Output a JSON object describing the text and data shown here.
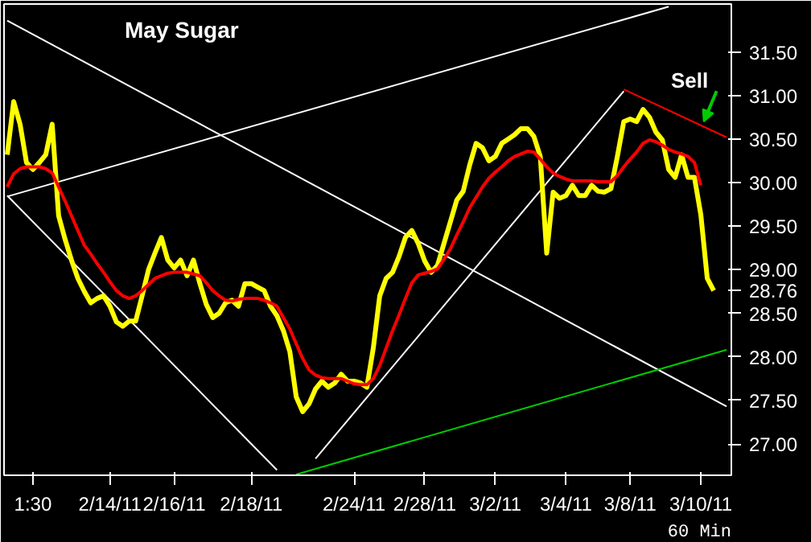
{
  "chart_data": {
    "type": "line",
    "title": "May Sugar",
    "categories": [
      null,
      null,
      null,
      null,
      "1:30",
      null,
      null,
      null,
      null,
      null,
      null,
      null,
      null,
      null,
      null,
      null,
      "2/14/11",
      null,
      null,
      null,
      null,
      null,
      null,
      null,
      null,
      null,
      "2/16/11",
      null,
      null,
      null,
      null,
      null,
      null,
      null,
      null,
      null,
      null,
      null,
      "2/18/11",
      null,
      null,
      null,
      null,
      null,
      null,
      null,
      null,
      null,
      null,
      null,
      null,
      null,
      null,
      null,
      "2/24/11",
      null,
      null,
      null,
      null,
      null,
      null,
      null,
      null,
      null,
      null,
      "2/28/11",
      null,
      null,
      null,
      null,
      null,
      null,
      null,
      null,
      null,
      null,
      "3/2/11",
      null,
      null,
      null,
      null,
      null,
      null,
      null,
      null,
      null,
      null,
      "3/4/11",
      null,
      null,
      null,
      null,
      null,
      null,
      null,
      null,
      null,
      "3/8/11",
      null,
      null,
      null,
      null,
      null,
      null,
      null,
      null,
      null,
      null,
      "3/10/11",
      null,
      null,
      null,
      null
    ],
    "ylim": [
      26.64,
      32.05
    ],
    "yticks": [
      {
        "value": 27,
        "label": "27.00"
      },
      {
        "value": 27.5,
        "label": "27.50"
      },
      {
        "value": 28,
        "label": "28.00"
      },
      {
        "value": 28.5,
        "label": "28.50"
      },
      {
        "value": 28.76,
        "label": "28.76"
      },
      {
        "value": 29,
        "label": "29.00"
      },
      {
        "value": 29.5,
        "label": "29.50"
      },
      {
        "value": 30,
        "label": "30.00"
      },
      {
        "value": 30.5,
        "label": "30.50"
      },
      {
        "value": 31,
        "label": "31.00"
      },
      {
        "value": 31.5,
        "label": "31.50"
      }
    ],
    "series": [
      {
        "color": "#ffffff",
        "values": [
          31.86,
          null,
          null,
          null,
          null,
          null,
          null,
          null,
          null,
          null,
          null,
          null,
          null,
          null,
          null,
          null,
          null,
          null,
          null,
          null,
          null,
          null,
          null,
          null,
          null,
          null,
          null,
          null,
          null,
          null,
          null,
          null,
          null,
          null,
          null,
          null,
          null,
          null,
          null,
          null,
          null,
          null,
          null,
          null,
          null,
          null,
          null,
          null,
          null,
          null,
          null,
          null,
          null,
          null,
          null,
          null,
          null,
          null,
          null,
          null,
          null,
          null,
          null,
          null,
          null,
          null,
          null,
          null,
          null,
          null,
          null,
          null,
          null,
          null,
          null,
          null,
          null,
          null,
          null,
          null,
          null,
          null,
          null,
          null,
          null,
          null,
          null,
          null,
          null,
          null,
          null,
          null,
          null,
          null,
          null,
          null,
          null,
          null,
          null,
          null,
          null,
          null,
          null,
          null,
          null,
          null,
          null,
          null,
          null,
          null,
          null,
          null,
          27.43
        ]
      },
      {
        "color": "#ffffff",
        "values": [
          29.84,
          null,
          null,
          null,
          null,
          null,
          null,
          null,
          null,
          null,
          null,
          null,
          null,
          null,
          null,
          null,
          null,
          null,
          null,
          null,
          null,
          null,
          null,
          null,
          null,
          null,
          null,
          null,
          null,
          null,
          null,
          null,
          null,
          null,
          null,
          null,
          null,
          null,
          null,
          null,
          null,
          null,
          null,
          null,
          null,
          null,
          null,
          null,
          null,
          null,
          null,
          null,
          null,
          null,
          null,
          null,
          null,
          null,
          null,
          null,
          null,
          null,
          null,
          null,
          null,
          null,
          null,
          null,
          null,
          null,
          null,
          null,
          null,
          null,
          null,
          null,
          null,
          null,
          null,
          null,
          null,
          null,
          null,
          null,
          null,
          null,
          null,
          null,
          null,
          null,
          null,
          null,
          null,
          null,
          null,
          null,
          null,
          null,
          null,
          null,
          null,
          null,
          null,
          32.02,
          null,
          null,
          null,
          null,
          null,
          null,
          null,
          null,
          null
        ]
      },
      {
        "color": "#ffffff",
        "values": [
          29.85,
          null,
          null,
          null,
          null,
          null,
          null,
          null,
          null,
          null,
          null,
          null,
          null,
          null,
          null,
          null,
          null,
          null,
          null,
          null,
          null,
          null,
          null,
          null,
          null,
          null,
          null,
          null,
          null,
          null,
          null,
          null,
          null,
          null,
          null,
          null,
          null,
          null,
          null,
          null,
          null,
          null,
          26.7,
          null,
          null,
          null,
          null,
          null,
          null,
          null,
          null,
          null,
          null,
          null,
          null,
          null,
          null,
          null,
          null,
          null,
          null,
          null,
          null,
          null,
          null,
          null,
          null,
          null,
          null,
          null,
          null,
          null,
          null,
          null,
          null,
          null,
          null,
          null,
          null,
          null,
          null,
          null,
          null,
          null,
          null,
          null,
          null,
          null,
          null,
          null,
          null,
          null,
          null,
          null,
          null,
          null,
          null,
          null,
          null,
          null,
          null,
          null,
          null,
          null,
          null,
          null,
          null,
          null,
          null,
          null,
          null,
          null,
          null
        ]
      },
      {
        "color": "#ffffff",
        "values": [
          null,
          null,
          null,
          null,
          null,
          null,
          null,
          null,
          null,
          null,
          null,
          null,
          null,
          null,
          null,
          null,
          null,
          null,
          null,
          null,
          null,
          null,
          null,
          null,
          null,
          null,
          null,
          null,
          null,
          null,
          null,
          null,
          null,
          null,
          null,
          null,
          null,
          null,
          null,
          null,
          null,
          null,
          null,
          null,
          null,
          null,
          null,
          null,
          26.83,
          null,
          null,
          null,
          null,
          null,
          null,
          null,
          null,
          null,
          null,
          null,
          null,
          null,
          null,
          null,
          null,
          null,
          null,
          null,
          null,
          null,
          null,
          null,
          null,
          null,
          null,
          null,
          null,
          null,
          null,
          null,
          null,
          null,
          null,
          null,
          null,
          null,
          null,
          null,
          null,
          null,
          null,
          null,
          null,
          null,
          null,
          null,
          31.05,
          null,
          null,
          null,
          null,
          null,
          null,
          null,
          null,
          null,
          null,
          null,
          null,
          null,
          null,
          null,
          null
        ]
      },
      {
        "color": "#ff0000",
        "values": [
          null,
          null,
          null,
          null,
          null,
          null,
          null,
          null,
          null,
          null,
          null,
          null,
          null,
          null,
          null,
          null,
          null,
          null,
          null,
          null,
          null,
          null,
          null,
          null,
          null,
          null,
          null,
          null,
          null,
          null,
          null,
          null,
          null,
          null,
          null,
          null,
          null,
          null,
          null,
          null,
          null,
          null,
          null,
          null,
          null,
          null,
          null,
          null,
          null,
          null,
          null,
          null,
          null,
          null,
          null,
          null,
          null,
          null,
          null,
          null,
          null,
          null,
          null,
          null,
          null,
          null,
          null,
          null,
          null,
          null,
          null,
          null,
          null,
          null,
          null,
          null,
          null,
          null,
          null,
          null,
          null,
          null,
          null,
          null,
          null,
          null,
          null,
          null,
          null,
          null,
          null,
          null,
          null,
          null,
          null,
          null,
          31.07,
          null,
          null,
          null,
          null,
          null,
          null,
          null,
          null,
          null,
          null,
          null,
          null,
          null,
          null,
          null,
          30.52
        ]
      },
      {
        "color": "#00cc00",
        "values": [
          null,
          null,
          null,
          null,
          null,
          null,
          null,
          null,
          null,
          null,
          null,
          null,
          null,
          null,
          null,
          null,
          null,
          null,
          null,
          null,
          null,
          null,
          null,
          null,
          null,
          null,
          null,
          null,
          null,
          null,
          null,
          null,
          null,
          null,
          null,
          null,
          null,
          null,
          null,
          null,
          null,
          null,
          null,
          null,
          null,
          26.65,
          null,
          null,
          null,
          null,
          null,
          null,
          null,
          null,
          null,
          null,
          null,
          null,
          null,
          null,
          null,
          null,
          null,
          null,
          null,
          null,
          null,
          null,
          null,
          null,
          null,
          null,
          null,
          null,
          null,
          null,
          null,
          null,
          null,
          null,
          null,
          null,
          null,
          null,
          null,
          null,
          null,
          null,
          null,
          null,
          null,
          null,
          null,
          null,
          null,
          null,
          null,
          null,
          null,
          null,
          null,
          null,
          null,
          null,
          null,
          null,
          null,
          null,
          null,
          null,
          null,
          null,
          28.08
        ]
      },
      {
        "color": "#ffff00",
        "values": [
          30.32,
          30.93,
          30.67,
          30.23,
          30.15,
          30.23,
          30.32,
          30.67,
          29.62,
          29.35,
          29.11,
          28.9,
          28.75,
          28.62,
          28.67,
          28.7,
          28.58,
          28.4,
          28.35,
          28.41,
          28.41,
          28.7,
          29.0,
          29.19,
          29.37,
          29.11,
          29.02,
          29.11,
          28.93,
          29.11,
          28.84,
          28.6,
          28.45,
          28.5,
          28.62,
          28.65,
          28.58,
          28.84,
          28.84,
          28.8,
          28.76,
          28.58,
          28.47,
          28.3,
          28.06,
          27.54,
          27.37,
          27.46,
          27.63,
          27.72,
          27.65,
          27.7,
          27.8,
          27.72,
          27.72,
          27.7,
          27.65,
          28.1,
          28.7,
          28.9,
          28.97,
          29.15,
          29.37,
          29.45,
          29.3,
          29.1,
          28.97,
          29.05,
          29.3,
          29.55,
          29.8,
          29.9,
          30.2,
          30.45,
          30.4,
          30.25,
          30.3,
          30.45,
          30.5,
          30.55,
          30.62,
          30.62,
          30.53,
          30.3,
          29.19,
          29.89,
          29.82,
          29.85,
          29.97,
          29.85,
          29.85,
          29.97,
          29.9,
          29.89,
          29.93,
          30.3,
          30.7,
          30.73,
          30.7,
          30.84,
          30.75,
          30.58,
          30.49,
          30.15,
          30.06,
          30.32,
          30.06,
          30.06,
          29.63,
          28.9,
          28.76,
          null,
          null
        ]
      },
      {
        "color": "#ff0000",
        "values": [
          29.95,
          30.1,
          30.16,
          30.18,
          30.18,
          30.18,
          30.16,
          30.11,
          29.95,
          29.79,
          29.62,
          29.45,
          29.28,
          29.18,
          29.07,
          28.97,
          28.86,
          28.76,
          28.7,
          28.67,
          28.7,
          28.76,
          28.83,
          28.9,
          28.93,
          28.96,
          28.97,
          28.97,
          28.97,
          28.95,
          28.93,
          28.85,
          28.76,
          28.7,
          28.65,
          28.64,
          28.66,
          28.67,
          28.67,
          28.67,
          28.65,
          28.62,
          28.58,
          28.45,
          28.32,
          28.15,
          27.98,
          27.85,
          27.79,
          27.76,
          27.75,
          27.75,
          27.75,
          27.72,
          27.69,
          27.68,
          27.68,
          27.75,
          27.9,
          28.1,
          28.3,
          28.48,
          28.67,
          28.85,
          28.94,
          28.96,
          28.98,
          29.01,
          29.12,
          29.24,
          29.4,
          29.55,
          29.71,
          29.83,
          29.95,
          30.05,
          30.12,
          30.18,
          30.25,
          30.3,
          30.33,
          30.36,
          30.35,
          30.27,
          30.18,
          30.11,
          30.07,
          30.04,
          30.02,
          30.02,
          30.02,
          30.02,
          30.01,
          30.01,
          30.01,
          30.08,
          30.18,
          30.27,
          30.35,
          30.45,
          30.49,
          30.47,
          30.43,
          30.38,
          30.35,
          30.33,
          30.3,
          30.23,
          29.97,
          null,
          null,
          null,
          null
        ]
      }
    ],
    "annotations": [
      "Sell",
      "60 Min"
    ]
  }
}
